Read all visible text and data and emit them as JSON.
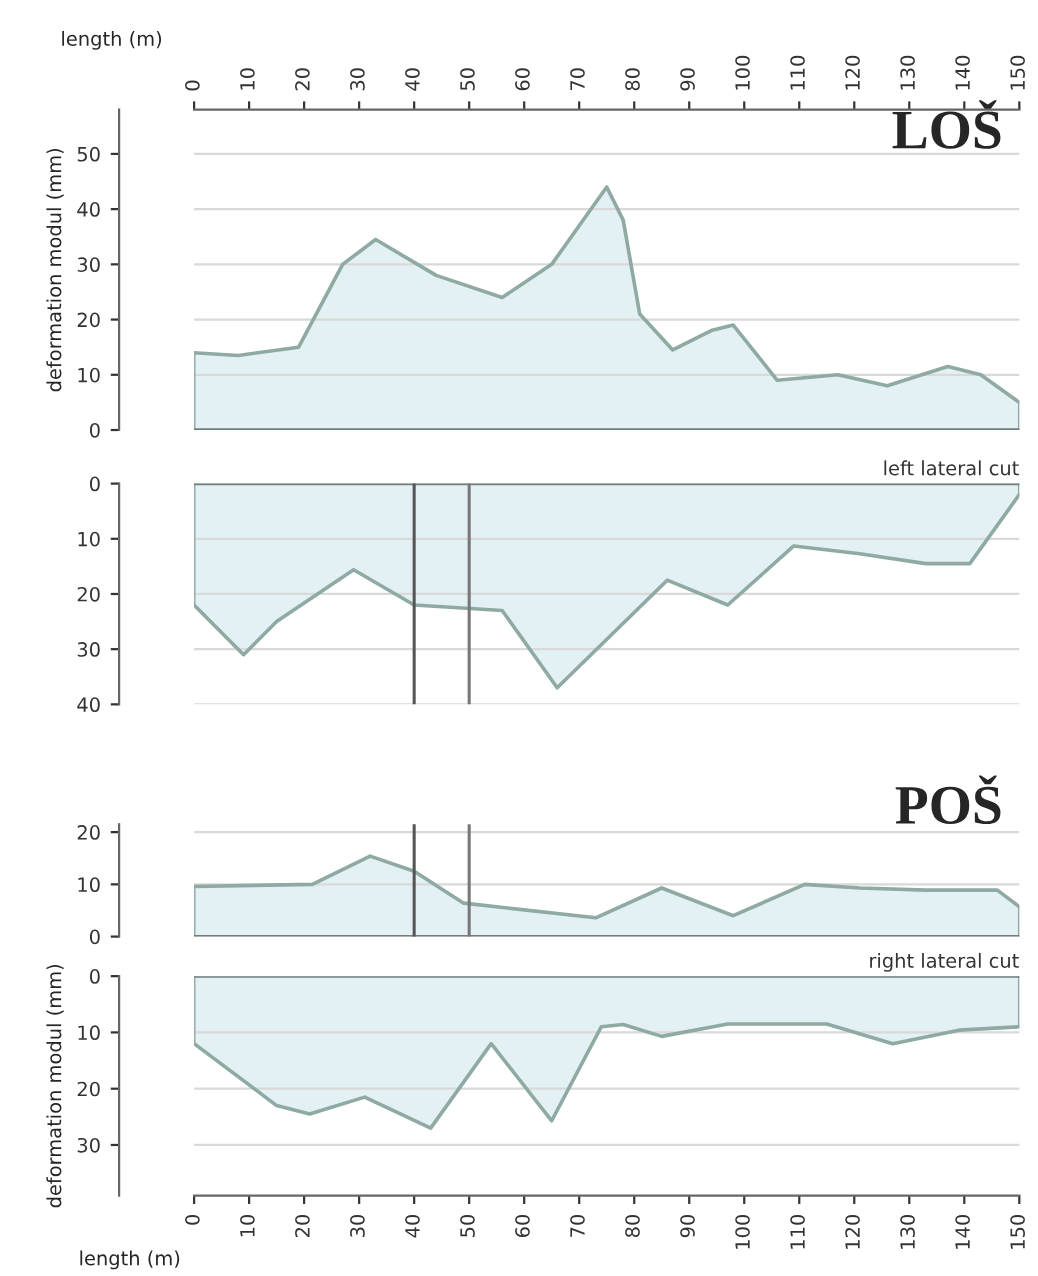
{
  "chart_data": [
    {
      "type": "area",
      "x2label": "length (m)",
      "ylabel": "deformation modul (mm)",
      "annotations": [
        "LOŠ"
      ],
      "x": [
        0,
        8,
        19,
        27,
        33,
        44,
        56,
        65,
        75,
        78,
        81,
        87,
        94,
        98,
        106,
        117,
        126,
        137,
        143,
        150
      ],
      "series": [
        {
          "color": "#8fa9a3",
          "values": [
            14,
            13.5,
            15,
            30,
            34.5,
            28,
            24,
            30,
            44,
            38,
            21,
            14.5,
            18,
            19,
            9,
            10,
            8,
            11.5,
            10,
            5
          ]
        }
      ],
      "xlim": [
        0,
        150
      ],
      "x2lim": [
        0,
        150
      ],
      "x2ticks": [
        0,
        10,
        20,
        30,
        40,
        50,
        60,
        70,
        80,
        90,
        100,
        110,
        120,
        130,
        140,
        150
      ],
      "ylim": [
        0,
        58
      ],
      "yticks": [
        0,
        10,
        20,
        30,
        40,
        50
      ],
      "tick_labels": "y",
      "grid": "y"
    },
    {
      "type": "area",
      "annotations": [
        "left lateral cut"
      ],
      "x": [
        0,
        9,
        15,
        29,
        40,
        56,
        66,
        86,
        97,
        109,
        121,
        133,
        141,
        150
      ],
      "series": [
        {
          "color": "#8fa9a3",
          "values": [
            22,
            31,
            25,
            15.6,
            22,
            23,
            37,
            17.5,
            22,
            11.3,
            12.7,
            14.5,
            14.5,
            2
          ]
        }
      ],
      "xlim": [
        0,
        150
      ],
      "ylim": [
        40,
        0
      ],
      "yticks": [
        0,
        10,
        20,
        30,
        40
      ],
      "tick_labels": "y",
      "grid": "y",
      "ref_lines": [
        {
          "axis": "x",
          "value": 40,
          "color": "#555555"
        },
        {
          "axis": "x",
          "value": 50,
          "color": "#777777"
        }
      ]
    },
    {
      "type": "area",
      "annotations": [
        "POŠ"
      ],
      "x": [
        0,
        21.5,
        32,
        40,
        49,
        73,
        85,
        98,
        111,
        121,
        133,
        146,
        150
      ],
      "series": [
        {
          "color": "#8fa9a3",
          "values": [
            9.6,
            10,
            15.4,
            12.5,
            6.4,
            3.6,
            9.3,
            4,
            10,
            9.3,
            8.9,
            8.9,
            5.7
          ]
        }
      ],
      "xlim": [
        0,
        150
      ],
      "ylim": [
        0,
        21.5
      ],
      "yticks": [
        0,
        10,
        20
      ],
      "tick_labels": "y",
      "grid": "y",
      "ref_lines": [
        {
          "axis": "x",
          "value": 40,
          "color": "#555555"
        },
        {
          "axis": "x",
          "value": 50,
          "color": "#777777"
        }
      ]
    },
    {
      "type": "area",
      "xlabel": "length (m)",
      "ylabel": "deformation modul (mm)",
      "annotations": [
        "right lateral cut"
      ],
      "x": [
        0,
        15,
        21,
        31,
        43,
        54,
        65,
        74,
        78,
        85,
        97,
        115,
        127,
        139,
        150
      ],
      "series": [
        {
          "color": "#8fa9a3",
          "values": [
            12,
            23,
            24.5,
            21.5,
            27,
            12,
            25.7,
            9,
            8.6,
            10.7,
            8.5,
            8.5,
            12,
            9.6,
            9
          ]
        }
      ],
      "xlim": [
        0,
        150
      ],
      "xticks": [
        0,
        10,
        20,
        30,
        40,
        50,
        60,
        70,
        80,
        90,
        100,
        110,
        120,
        130,
        140,
        150
      ],
      "ylim": [
        39,
        0
      ],
      "yticks": [
        0,
        10,
        20,
        30
      ],
      "grid": "y"
    }
  ]
}
